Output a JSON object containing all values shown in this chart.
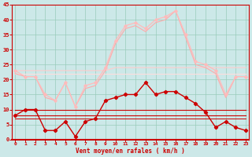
{
  "xlabel": "Vent moyen/en rafales ( km/h )",
  "x": [
    0,
    1,
    2,
    3,
    4,
    5,
    6,
    7,
    8,
    9,
    10,
    11,
    12,
    13,
    14,
    15,
    16,
    17,
    18,
    19,
    20,
    21,
    22,
    23
  ],
  "rafales_max": [
    23,
    21,
    21,
    15,
    13,
    19,
    11,
    18,
    19,
    24,
    33,
    38,
    39,
    37,
    40,
    41,
    43,
    35,
    26,
    25,
    23,
    15,
    21,
    21
  ],
  "rafales_med": [
    22,
    21,
    21,
    14,
    13,
    19,
    11,
    17,
    18,
    23,
    32,
    37,
    38,
    36,
    39,
    40,
    43,
    34,
    25,
    24,
    22,
    14,
    21,
    21
  ],
  "flat_pink1": [
    23,
    23,
    23,
    23,
    23,
    23,
    23,
    23,
    23,
    23,
    24,
    24,
    24,
    24,
    24,
    24,
    24,
    24,
    24,
    24,
    24,
    24,
    24,
    24
  ],
  "flat_pink2": [
    22,
    22,
    22,
    22,
    22,
    22,
    22,
    22,
    22,
    22,
    22,
    22,
    22,
    22,
    22,
    22,
    22,
    22,
    22,
    22,
    22,
    22,
    22,
    22
  ],
  "vent_moyen": [
    8,
    10,
    10,
    3,
    3,
    6,
    1,
    6,
    7,
    13,
    14,
    15,
    15,
    19,
    15,
    16,
    16,
    14,
    12,
    9,
    4,
    6,
    4,
    3
  ],
  "flat_dark1": [
    10,
    10,
    10,
    10,
    10,
    10,
    10,
    10,
    10,
    10,
    10,
    10,
    10,
    10,
    10,
    10,
    10,
    10,
    10,
    10,
    10,
    10,
    10,
    10
  ],
  "flat_dark2": [
    8,
    8,
    8,
    8,
    8,
    8,
    8,
    8,
    8,
    8,
    8,
    8,
    8,
    8,
    8,
    8,
    8,
    8,
    8,
    8,
    8,
    8,
    8,
    8
  ],
  "flat_dark3": [
    7,
    7,
    7,
    7,
    7,
    7,
    7,
    7,
    7,
    7,
    7,
    7,
    7,
    7,
    7,
    7,
    7,
    7,
    7,
    7,
    7,
    7,
    7,
    7
  ],
  "ylim": [
    0,
    45
  ],
  "yticks": [
    0,
    5,
    10,
    15,
    20,
    25,
    30,
    35,
    40,
    45
  ],
  "xlim": [
    -0.3,
    23.3
  ],
  "bg_color": "#cce8e8",
  "grid_color": "#99ccbb",
  "color_light1": "#ffbbbb",
  "color_light2": "#ffaaaa",
  "color_light3": "#ffcccc",
  "color_light4": "#ffdddd",
  "color_dark": "#cc0000",
  "color_med": "#ff6666"
}
